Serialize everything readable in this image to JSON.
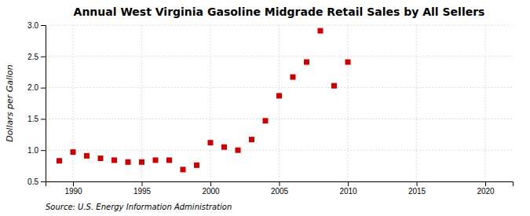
{
  "chart_data": {
    "type": "scatter",
    "title": "Annual West Virginia Gasoline Midgrade Retail Sales by All Sellers",
    "y_label": "Dollars per Gallon",
    "annotations": [
      "Source: U.S. Energy Information Administration"
    ],
    "x": [
      1989,
      1990,
      1991,
      1992,
      1993,
      1994,
      1995,
      1996,
      1997,
      1998,
      1999,
      2000,
      2001,
      2002,
      2003,
      2004,
      2005,
      2006,
      2007,
      2008,
      2009,
      2010
    ],
    "values": [
      0.83,
      0.97,
      0.91,
      0.87,
      0.84,
      0.81,
      0.81,
      0.84,
      0.84,
      0.69,
      0.76,
      1.12,
      1.05,
      1.0,
      1.17,
      1.47,
      1.87,
      2.17,
      2.41,
      2.91,
      2.03,
      2.41
    ],
    "color": "#cc0000",
    "marker": "square",
    "xlim": [
      1988,
      2022
    ],
    "ylim": [
      0.5,
      3.0
    ],
    "xticks": [
      1990,
      1995,
      2000,
      2005,
      2010,
      2015,
      2020
    ],
    "yticks": [
      0.5,
      {
        "value": 1.0,
        "label": "1.0"
      },
      1.5,
      {
        "value": 2.0,
        "label": "2.0"
      },
      2.5,
      {
        "value": 3.0,
        "label": "3.0"
      }
    ],
    "grid": true
  }
}
